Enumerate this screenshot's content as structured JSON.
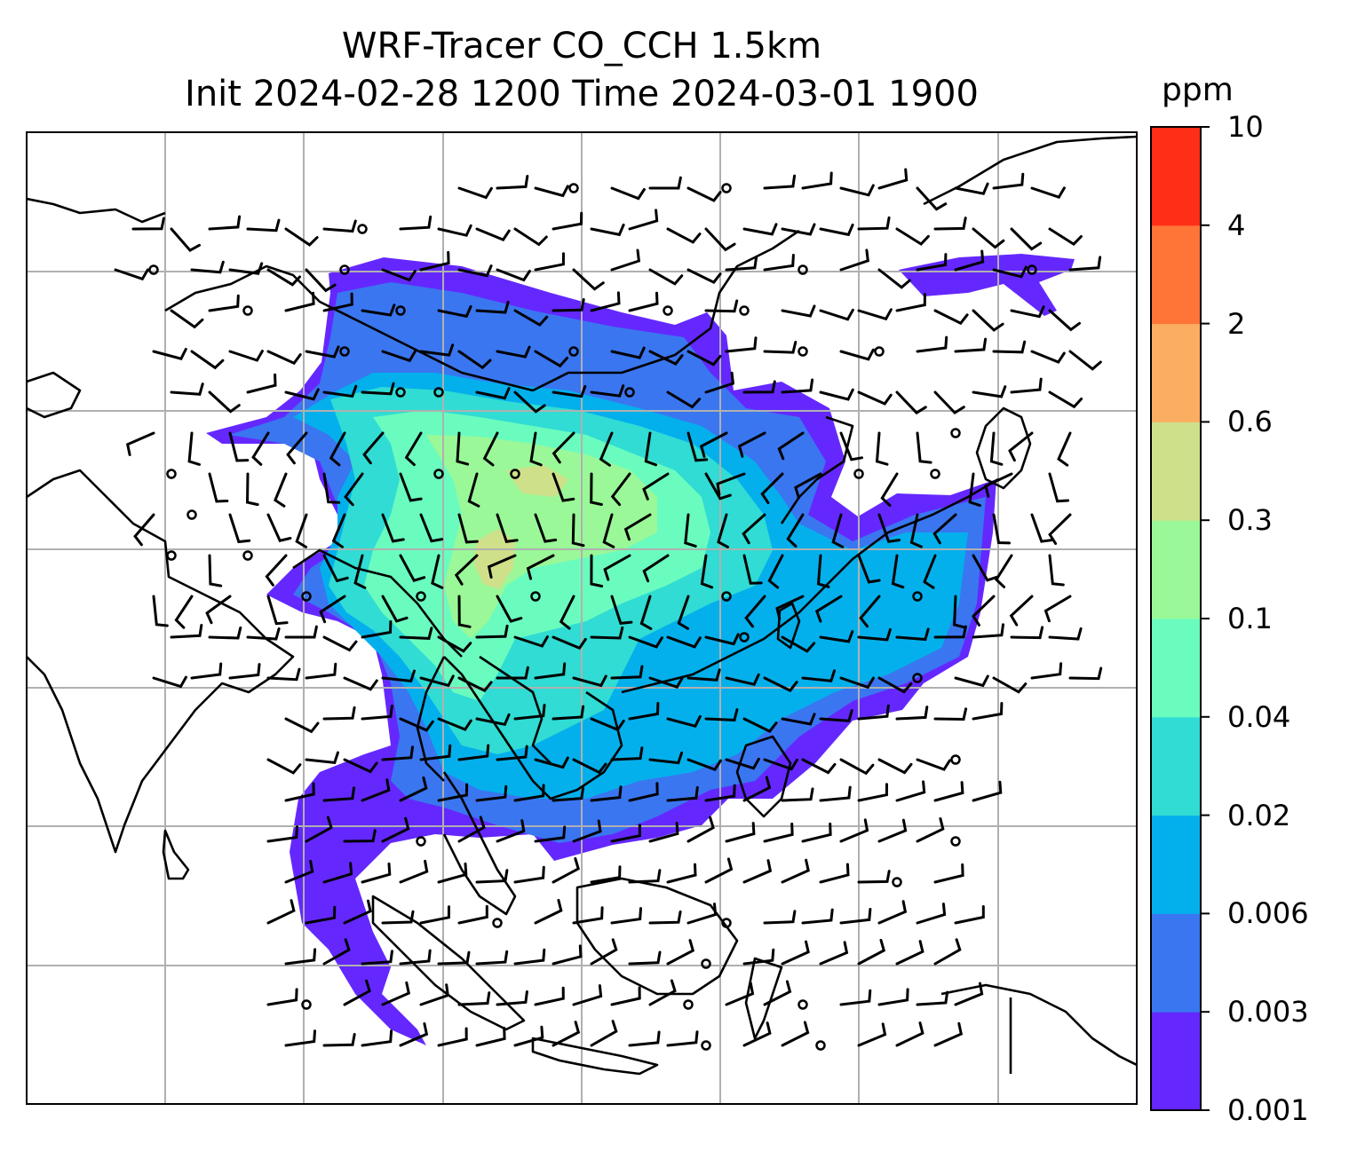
{
  "figure": {
    "title_line1": "WRF-Tracer CO_CCH 1.5km",
    "title_line2": "Init 2024-02-28 1200 Time 2024-03-01 1900"
  },
  "colorbar": {
    "unit": "ppm",
    "levels": [
      "0.001",
      "0.003",
      "0.006",
      "0.02",
      "0.04",
      "0.1",
      "0.3",
      "0.6",
      "2",
      "4",
      "10"
    ],
    "colors": [
      "#6428ff",
      "#3a76f0",
      "#03b0ec",
      "#30dcd3",
      "#6afcbf",
      "#9af898",
      "#cfe08a",
      "#fbad62",
      "#ff7437",
      "#ff2e17"
    ]
  },
  "map": {
    "gridline_color": "#b0b0b0",
    "coastline_color": "#000000",
    "wind_barb_color": "#000000",
    "calm_marker": "circle"
  }
}
